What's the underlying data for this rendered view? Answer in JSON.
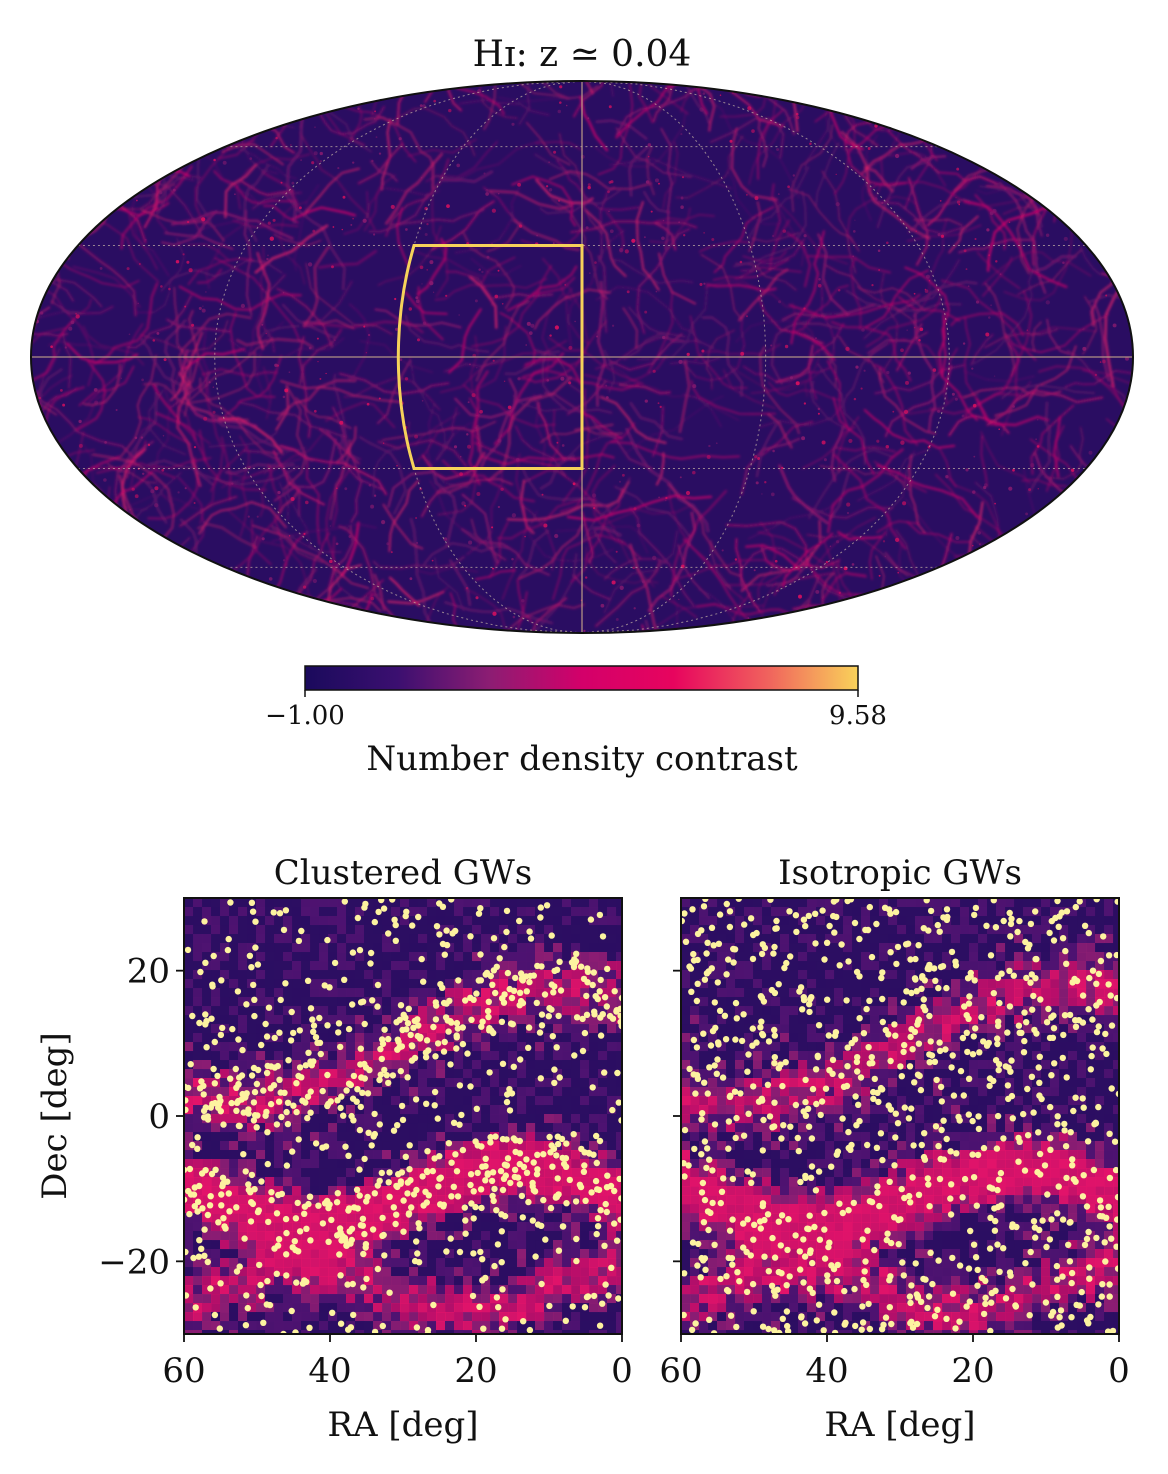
{
  "figure": {
    "sky_map": {
      "title": "Hɪ: z ≃ 0.04",
      "projection": "mollweide",
      "highlight_box_color": "#f6d25a"
    },
    "colorbar": {
      "label": "Number density contrast",
      "min_label": "−1.00",
      "max_label": "9.58",
      "min": -1.0,
      "max": 9.58,
      "colormap": "inferno-like",
      "stops": [
        "#1a0a5c",
        "#3b0f70",
        "#8c1d73",
        "#d3006a",
        "#e7045e",
        "#f0605d",
        "#f9d25a"
      ]
    },
    "shared": {
      "xlabel": "RA [deg]",
      "ylabel": "Dec [deg]",
      "marker_color": "#fdf3a0"
    }
  },
  "chart_data": [
    {
      "type": "heatmap",
      "title": "Hɪ: z ≃ 0.04",
      "colorbar_label": "Number density contrast",
      "color_range": [
        -1.0,
        9.58
      ],
      "highlight_region": {
        "ra_range": [
          0,
          60
        ],
        "dec_range": [
          -30,
          30
        ]
      }
    },
    {
      "type": "scatter",
      "title": "Clustered GWs",
      "xlabel": "RA [deg]",
      "ylabel": "Dec [deg]",
      "xlim": [
        60,
        0
      ],
      "ylim": [
        -30,
        30
      ],
      "xticks": [
        "60",
        "40",
        "20",
        "0"
      ],
      "yticks": [
        "20",
        "0",
        "−20"
      ],
      "background": "heatmap of number density contrast",
      "marker_count_approx": 900
    },
    {
      "type": "scatter",
      "title": "Isotropic GWs",
      "xlabel": "RA [deg]",
      "ylabel": "",
      "xlim": [
        60,
        0
      ],
      "ylim": [
        -30,
        30
      ],
      "xticks": [
        "60",
        "40",
        "20",
        "0"
      ],
      "yticks": [
        "20",
        "0",
        "−20"
      ],
      "background": "heatmap of number density contrast",
      "marker_count_approx": 900
    }
  ]
}
